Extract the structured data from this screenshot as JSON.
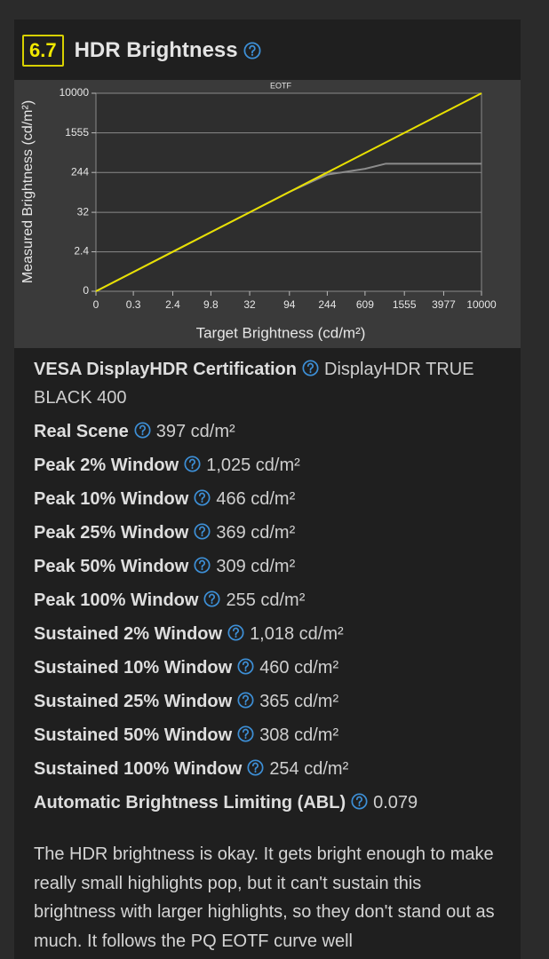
{
  "header": {
    "score": "6.7",
    "title": "HDR Brightness"
  },
  "chart_data": {
    "type": "line",
    "title": "EOTF",
    "x_label": "Target Brightness (cd/m²)",
    "y_label": "Measured Brightness (cd/m²)",
    "scale": "pq",
    "x": [
      0,
      0.3,
      2.4,
      9.8,
      32,
      94,
      244,
      609,
      1000,
      10000
    ],
    "series": [
      {
        "color": "#8c8c8c",
        "values": [
          0,
          0.3,
          2.4,
          9.8,
          32,
          94,
          220,
          290,
          370,
          370
        ]
      },
      {
        "color": "#e8e000",
        "values": [
          0,
          0.3,
          2.4,
          9.8,
          32,
          94,
          244,
          609,
          1000,
          10000
        ]
      }
    ],
    "xlim": [
      0,
      10000
    ],
    "ylim": [
      0,
      10000
    ],
    "xticks": [
      0,
      0.3,
      2.4,
      9.8,
      32,
      94,
      244,
      609,
      1555,
      3977,
      10000
    ],
    "yticks": [
      0,
      2.4,
      32,
      244,
      1555,
      10000
    ],
    "grid": true
  },
  "specs": [
    {
      "label": "VESA DisplayHDR Certification",
      "value": "DisplayHDR TRUE BLACK 400"
    },
    {
      "label": "Real Scene",
      "value": "397 cd/m²"
    },
    {
      "label": "Peak 2% Window",
      "value": "1,025 cd/m²"
    },
    {
      "label": "Peak 10% Window",
      "value": "466 cd/m²"
    },
    {
      "label": "Peak 25% Window",
      "value": "369 cd/m²"
    },
    {
      "label": "Peak 50% Window",
      "value": "309 cd/m²"
    },
    {
      "label": "Peak 100% Window",
      "value": "255 cd/m²"
    },
    {
      "label": "Sustained 2% Window",
      "value": "1,018 cd/m²"
    },
    {
      "label": "Sustained 10% Window",
      "value": "460 cd/m²"
    },
    {
      "label": "Sustained 25% Window",
      "value": "365 cd/m²"
    },
    {
      "label": "Sustained 50% Window",
      "value": "308 cd/m²"
    },
    {
      "label": "Sustained 100% Window",
      "value": "254 cd/m²"
    },
    {
      "label": "Automatic Brightness Limiting (ABL)",
      "value": "0.079"
    }
  ],
  "description": "The HDR brightness is okay. It gets bright enough to make really small highlights pop, but it can't sustain this brightness with larger highlights, so they don't stand out as much. It follows the PQ EOTF curve well"
}
